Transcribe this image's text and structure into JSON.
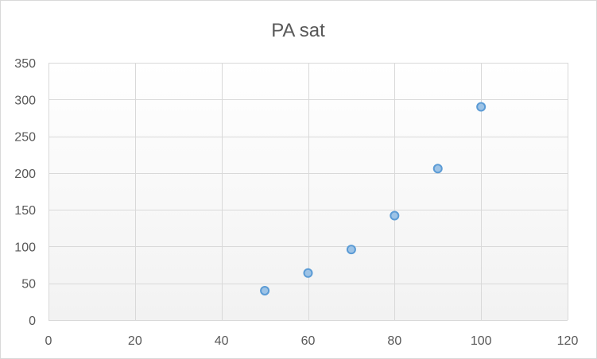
{
  "chart_data": {
    "type": "scatter",
    "title": "PA sat",
    "xlabel": "",
    "ylabel": "",
    "xlim": [
      0,
      120
    ],
    "ylim": [
      0,
      350
    ],
    "x_ticks": [
      0,
      20,
      40,
      60,
      80,
      100,
      120
    ],
    "y_ticks": [
      0,
      50,
      100,
      150,
      200,
      250,
      300,
      350
    ],
    "grid": true,
    "legend": "none",
    "series": [
      {
        "color": "#5b9bd5",
        "fill": "#9dc3e6",
        "points": [
          {
            "x": 50,
            "y": 40
          },
          {
            "x": 60,
            "y": 64
          },
          {
            "x": 70,
            "y": 96
          },
          {
            "x": 80,
            "y": 142
          },
          {
            "x": 90,
            "y": 206
          },
          {
            "x": 100,
            "y": 290
          }
        ]
      }
    ]
  }
}
